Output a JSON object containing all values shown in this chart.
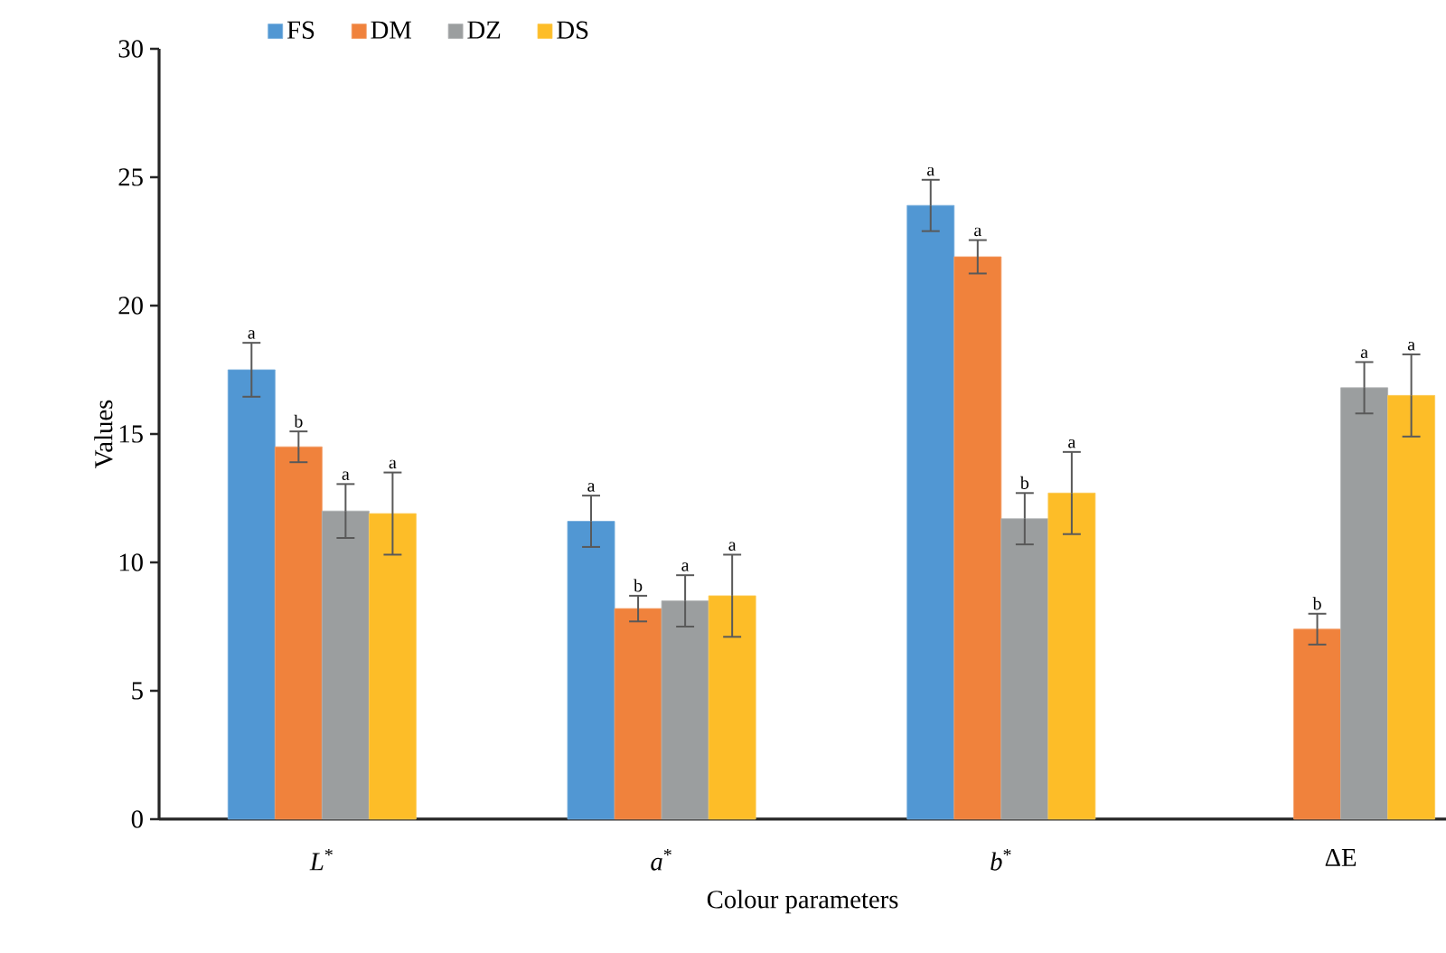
{
  "chart_data": {
    "type": "bar",
    "xlabel": "Colour parameters",
    "ylabel": "Values",
    "categories": [
      "*L*$^{*}$",
      "*a*$^{*}$",
      "*b*$^{*}$",
      "ΔE"
    ],
    "series": [
      {
        "name": "FS",
        "color": "#5197d3",
        "values": [
          17.5,
          11.6,
          23.9,
          null
        ],
        "errors": [
          1.05,
          1.0,
          1.0,
          null
        ],
        "value_labels": [
          "a",
          "a",
          "a",
          null
        ]
      },
      {
        "name": "DM",
        "color": "#f0823c",
        "values": [
          14.5,
          8.2,
          21.9,
          7.4
        ],
        "errors": [
          0.6,
          0.5,
          0.65,
          0.6
        ],
        "value_labels": [
          "b",
          "b",
          "a",
          "b"
        ]
      },
      {
        "name": "DZ",
        "color": "#9b9e9f",
        "values": [
          12.0,
          8.5,
          11.7,
          16.8
        ],
        "errors": [
          1.05,
          1.0,
          1.0,
          1.0
        ],
        "value_labels": [
          "a",
          "a",
          "b",
          "a"
        ]
      },
      {
        "name": "DS",
        "color": "#fdbd28",
        "values": [
          11.9,
          8.7,
          12.7,
          16.5
        ],
        "errors": [
          1.6,
          1.6,
          1.6,
          1.6
        ],
        "value_labels": [
          "a",
          "a",
          "a",
          "a"
        ]
      }
    ],
    "ylim": [
      0,
      30
    ],
    "yticks": [
      0,
      5,
      10,
      15,
      20,
      25,
      30
    ],
    "legend": "top",
    "grid": false
  }
}
